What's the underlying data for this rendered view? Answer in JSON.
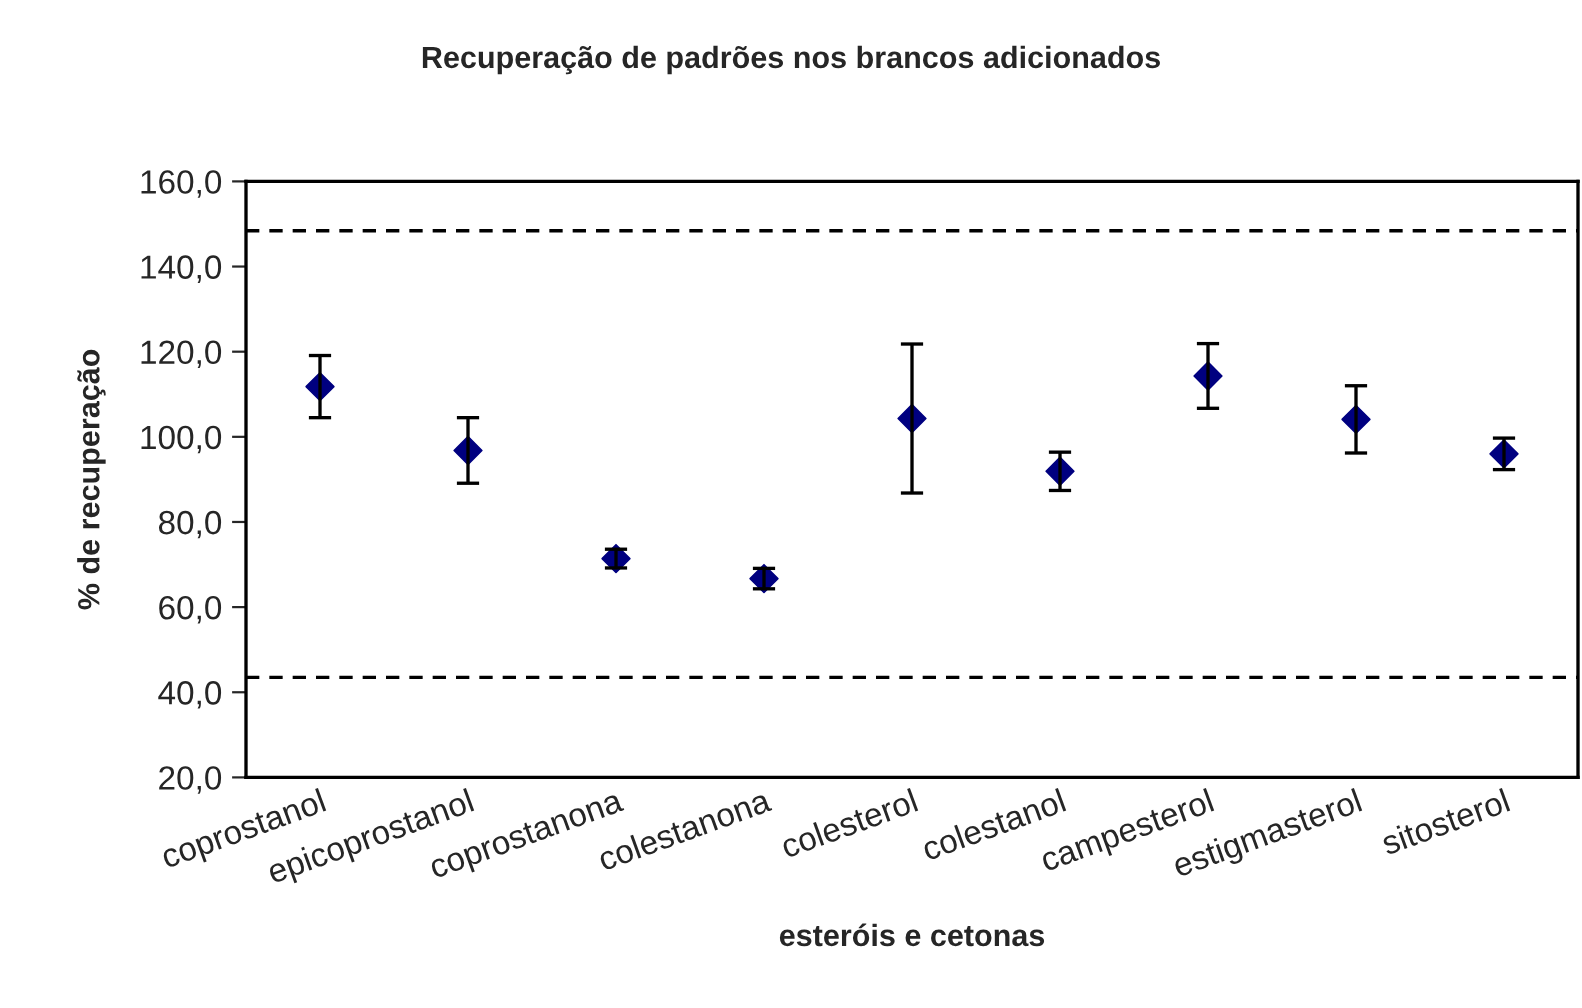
{
  "chart_data": {
    "type": "scatter",
    "title": "Recuperação de padrões nos brancos adicionados",
    "xlabel": "esteróis e cetonas",
    "ylabel": "% de recuperação",
    "categories": [
      "coprostanol",
      "epicoprostanol",
      "coprostanona",
      "colestanona",
      "colesterol",
      "colestanol",
      "campesterol",
      "estigmasterol",
      "sitosterol"
    ],
    "values": [
      111.8,
      96.8,
      71.4,
      66.7,
      104.3,
      91.9,
      114.3,
      104.1,
      96.0
    ],
    "errors": [
      7.3,
      7.7,
      2.2,
      2.4,
      17.5,
      4.5,
      7.6,
      7.9,
      3.7
    ],
    "color": "#000080",
    "marker": "diamond",
    "grid": false,
    "legend": false,
    "ylim": [
      20,
      160
    ],
    "yticks": [
      {
        "value": 20,
        "label": "20,0"
      },
      {
        "value": 40,
        "label": "40,0"
      },
      {
        "value": 60,
        "label": "60,0"
      },
      {
        "value": 80,
        "label": "80,0"
      },
      {
        "value": 100,
        "label": "100,0"
      },
      {
        "value": 120,
        "label": "120,0"
      },
      {
        "value": 140,
        "label": "140,0"
      },
      {
        "value": 160,
        "label": "160,0"
      }
    ],
    "ref_lines": [
      {
        "axis": "y",
        "value": 148.4,
        "color": "#000000",
        "line_style": "dashed"
      },
      {
        "axis": "y",
        "value": 43.5,
        "color": "#000000",
        "line_style": "dashed"
      }
    ]
  }
}
